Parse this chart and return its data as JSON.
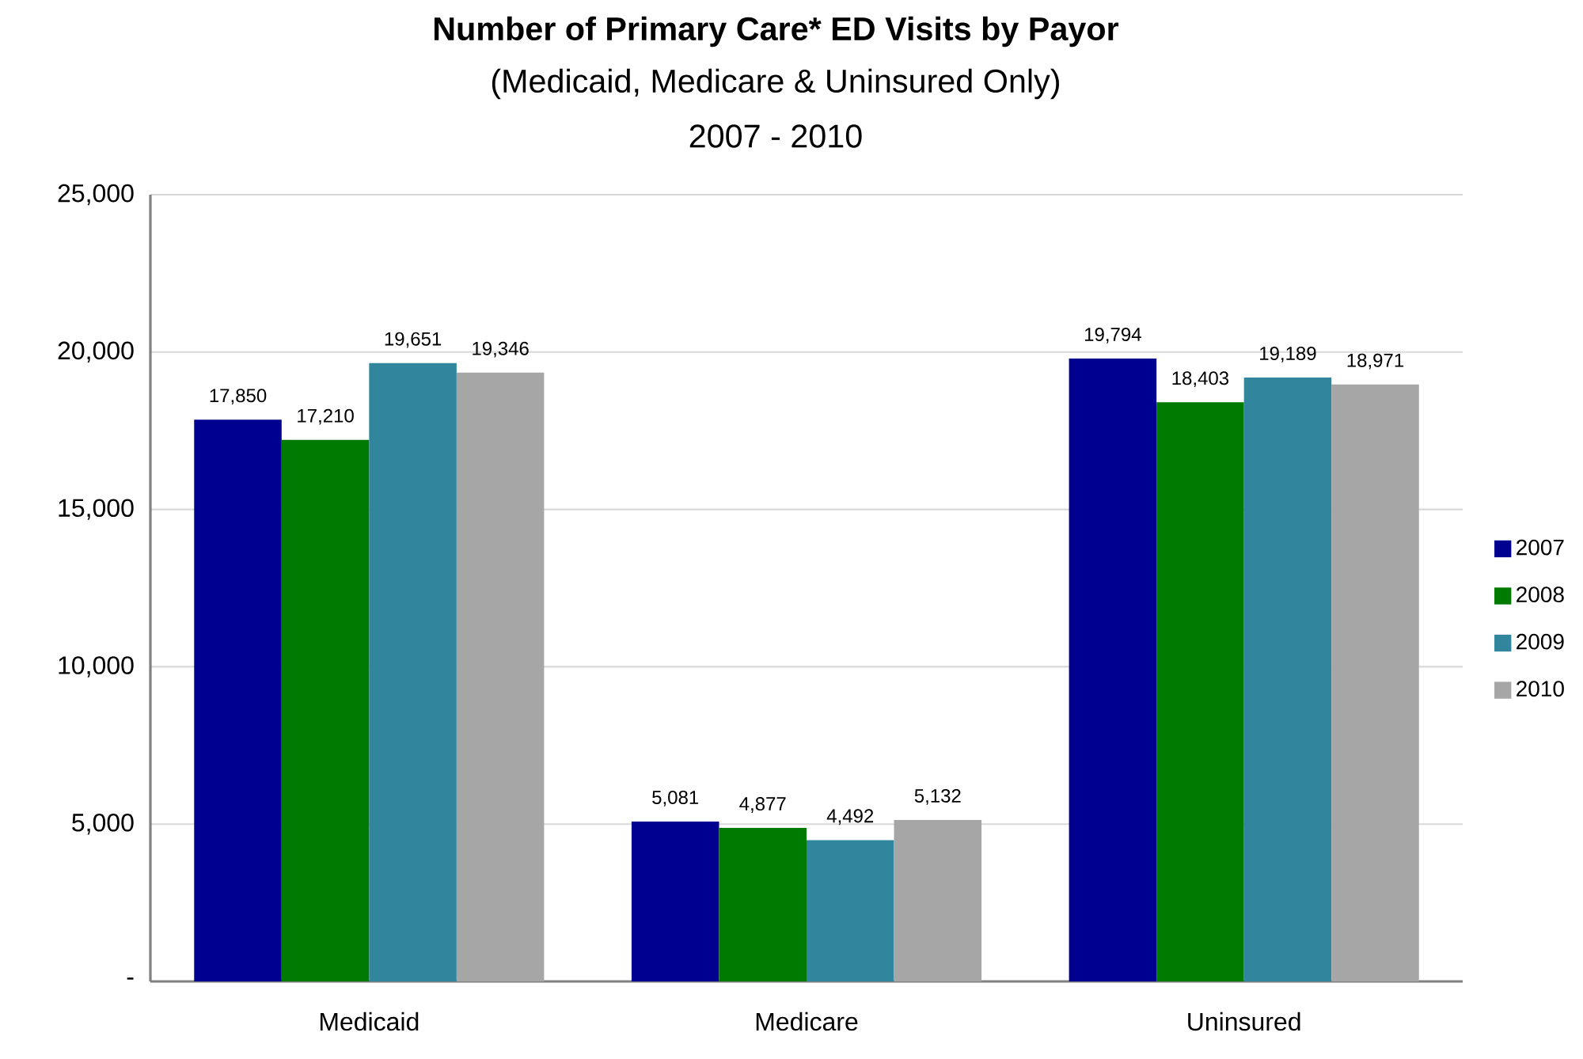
{
  "chart_data": {
    "type": "bar",
    "title": "Number of Primary Care* ED Visits by Payor",
    "subtitle": "(Medicaid, Medicare & Uninsured Only)",
    "annotations": [
      "2007 - 2010"
    ],
    "categories": [
      "Medicaid",
      "Medicare",
      "Uninsured"
    ],
    "series": [
      {
        "name": "2007",
        "color": "#000090",
        "values": [
          17850,
          5081,
          19794
        ],
        "value_labels": [
          "17,850",
          "5,081",
          "19,794"
        ]
      },
      {
        "name": "2008",
        "color": "#007A00",
        "values": [
          17210,
          4877,
          18403
        ],
        "value_labels": [
          "17,210",
          "4,877",
          "18,403"
        ]
      },
      {
        "name": "2009",
        "color": "#31859C",
        "values": [
          19651,
          4492,
          19189
        ],
        "value_labels": [
          "19,651",
          "4,492",
          "19,189"
        ]
      },
      {
        "name": "2010",
        "color": "#A6A6A6",
        "values": [
          19346,
          5132,
          18971
        ],
        "value_labels": [
          "19,346",
          "5,132",
          "18,971"
        ]
      }
    ],
    "ylim": [
      0,
      25000
    ],
    "yticks": [
      {
        "value": 0,
        "label": "-"
      },
      {
        "value": 5000,
        "label": "5,000"
      },
      {
        "value": 10000,
        "label": "10,000"
      },
      {
        "value": 15000,
        "label": "15,000"
      },
      {
        "value": 20000,
        "label": "20,000"
      },
      {
        "value": 25000,
        "label": "25,000"
      }
    ],
    "grid": "y",
    "legend": "right"
  }
}
